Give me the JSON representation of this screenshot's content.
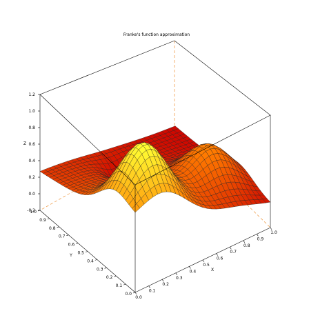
{
  "chart_data": {
    "type": "surface",
    "title": "Franke's function approximation",
    "xlabel": "X",
    "ylabel": "Y",
    "zlabel": "Z",
    "xlim": [
      0.0,
      1.0
    ],
    "ylim": [
      0.0,
      1.0
    ],
    "zlim": [
      -0.2,
      1.2
    ],
    "x_ticks": [
      "0.0",
      "0.1",
      "0.2",
      "0.3",
      "0.4",
      "0.5",
      "0.6",
      "0.7",
      "0.8",
      "0.9",
      "1.0"
    ],
    "y_ticks": [
      "0.0",
      "0.1",
      "0.2",
      "0.3",
      "0.4",
      "0.5",
      "0.6",
      "0.7",
      "0.8",
      "0.9",
      "1.0"
    ],
    "z_ticks": [
      "-0.2",
      "0.0",
      "0.2",
      "0.4",
      "0.6",
      "0.8",
      "1.0",
      "1.2"
    ],
    "grid_size": 30,
    "function": "Franke",
    "colormap": {
      "low": "#cc0000",
      "mid": "#ff7a00",
      "high": "#ffff33"
    }
  }
}
